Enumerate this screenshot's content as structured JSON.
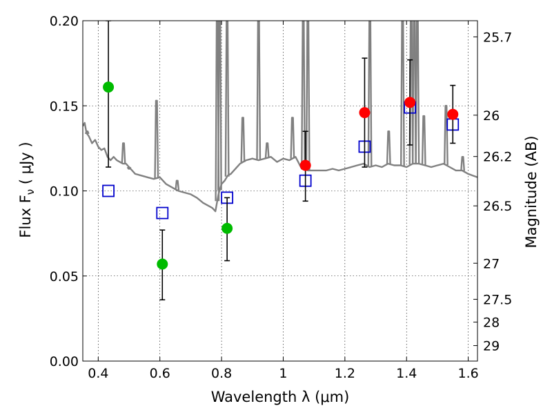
{
  "chart_data": {
    "type": "scatter",
    "xlabel": "Wavelength  λ (μm)",
    "ylabel": "Flux  F",
    "ylabel_sub": "ν",
    "ylabel_unit": "  ( μJy )",
    "y2label": "Magnitude (AB)",
    "xlim": [
      0.35,
      1.63
    ],
    "ylim": [
      0.0,
      0.2
    ],
    "grid": true,
    "x_ticks": [
      0.4,
      0.6,
      0.8,
      1.0,
      1.2,
      1.4,
      1.6
    ],
    "x_tick_labels": [
      "0.4",
      "0.6",
      "0.8",
      "1",
      "1.2",
      "1.4",
      "1.6"
    ],
    "y_ticks": [
      0.0,
      0.05,
      0.1,
      0.15,
      0.2
    ],
    "y_tick_labels": [
      "0.00",
      "0.05",
      "0.10",
      "0.15",
      "0.20"
    ],
    "mag_ticks": [
      {
        "label": "25.7",
        "flux": 0.1905
      },
      {
        "label": "26",
        "flux": 0.1445
      },
      {
        "label": "26.2",
        "flux": 0.1202
      },
      {
        "label": "26.5",
        "flux": 0.0912
      },
      {
        "label": "27",
        "flux": 0.0575
      },
      {
        "label": "27.5",
        "flux": 0.0363
      },
      {
        "label": "28",
        "flux": 0.0229
      },
      {
        "label": "29",
        "flux": 0.0091
      }
    ],
    "series": [
      {
        "kind": "spectrum",
        "color": "#808080",
        "x": [
          0.35,
          0.356,
          0.362,
          0.37,
          0.38,
          0.39,
          0.4,
          0.41,
          0.42,
          0.43,
          0.44,
          0.45,
          0.46,
          0.47,
          0.48,
          0.49,
          0.5,
          0.52,
          0.54,
          0.56,
          0.58,
          0.6,
          0.62,
          0.64,
          0.66,
          0.68,
          0.7,
          0.72,
          0.74,
          0.76,
          0.77,
          0.78,
          0.79,
          0.8,
          0.81,
          0.82,
          0.83,
          0.84,
          0.86,
          0.88,
          0.9,
          0.92,
          0.94,
          0.96,
          0.98,
          1.0,
          1.02,
          1.04,
          1.06,
          1.08,
          1.1,
          1.12,
          1.14,
          1.16,
          1.18,
          1.2,
          1.22,
          1.24,
          1.26,
          1.28,
          1.3,
          1.32,
          1.34,
          1.36,
          1.38,
          1.4,
          1.42,
          1.44,
          1.46,
          1.48,
          1.5,
          1.52,
          1.54,
          1.56,
          1.58,
          1.6,
          1.63
        ],
        "y": [
          0.138,
          0.14,
          0.134,
          0.132,
          0.128,
          0.13,
          0.126,
          0.124,
          0.125,
          0.12,
          0.118,
          0.12,
          0.118,
          0.117,
          0.116,
          0.116,
          0.114,
          0.11,
          0.109,
          0.108,
          0.107,
          0.108,
          0.104,
          0.102,
          0.1,
          0.099,
          0.098,
          0.096,
          0.093,
          0.091,
          0.09,
          0.088,
          0.098,
          0.104,
          0.106,
          0.109,
          0.11,
          0.112,
          0.116,
          0.118,
          0.119,
          0.118,
          0.119,
          0.12,
          0.117,
          0.119,
          0.118,
          0.12,
          0.113,
          0.112,
          0.112,
          0.112,
          0.112,
          0.113,
          0.112,
          0.113,
          0.114,
          0.115,
          0.116,
          0.114,
          0.115,
          0.114,
          0.116,
          0.115,
          0.115,
          0.114,
          0.116,
          0.116,
          0.115,
          0.114,
          0.115,
          0.116,
          0.114,
          0.112,
          0.112,
          0.11,
          0.108
        ]
      },
      {
        "kind": "emission-lines",
        "color": "#808080",
        "lines": [
          {
            "x": 0.364,
            "peak": 0.135
          },
          {
            "x": 0.482,
            "peak": 0.128
          },
          {
            "x": 0.5,
            "peak": 0.113
          },
          {
            "x": 0.589,
            "peak": 0.153
          },
          {
            "x": 0.656,
            "peak": 0.106
          },
          {
            "x": 0.786,
            "peak": 0.2
          },
          {
            "x": 0.794,
            "peak": 0.2
          },
          {
            "x": 0.818,
            "peak": 0.2
          },
          {
            "x": 0.869,
            "peak": 0.143
          },
          {
            "x": 0.92,
            "peak": 0.2
          },
          {
            "x": 0.948,
            "peak": 0.128
          },
          {
            "x": 1.03,
            "peak": 0.143
          },
          {
            "x": 1.065,
            "peak": 0.2
          },
          {
            "x": 1.08,
            "peak": 0.2
          },
          {
            "x": 1.281,
            "peak": 0.2
          },
          {
            "x": 1.342,
            "peak": 0.135
          },
          {
            "x": 1.387,
            "peak": 0.2
          },
          {
            "x": 1.415,
            "peak": 0.2
          },
          {
            "x": 1.425,
            "peak": 0.2
          },
          {
            "x": 1.435,
            "peak": 0.2
          },
          {
            "x": 1.456,
            "peak": 0.144
          },
          {
            "x": 1.528,
            "peak": 0.15
          },
          {
            "x": 1.582,
            "peak": 0.12
          }
        ]
      },
      {
        "kind": "markers",
        "marker": "open-square",
        "color": "#0000cc",
        "x": [
          0.433,
          0.608,
          0.818,
          1.072,
          1.264,
          1.411,
          1.55
        ],
        "y": [
          0.1,
          0.087,
          0.096,
          0.106,
          0.126,
          0.149,
          0.139
        ]
      },
      {
        "kind": "markers",
        "marker": "filled-circle",
        "color": "#00bb00",
        "x": [
          0.433,
          0.608,
          0.818
        ],
        "y": [
          0.161,
          0.057,
          0.078
        ],
        "err_low": [
          0.114,
          0.036,
          0.059
        ],
        "err_high": [
          0.2,
          0.077,
          0.096
        ]
      },
      {
        "kind": "markers",
        "marker": "filled-circle",
        "color": "#ff0000",
        "x": [
          1.072,
          1.264,
          1.411,
          1.55
        ],
        "y": [
          0.115,
          0.146,
          0.152,
          0.145
        ],
        "err_low": [
          0.094,
          0.114,
          0.127,
          0.128
        ],
        "err_high": [
          0.135,
          0.178,
          0.177,
          0.162
        ]
      }
    ]
  }
}
